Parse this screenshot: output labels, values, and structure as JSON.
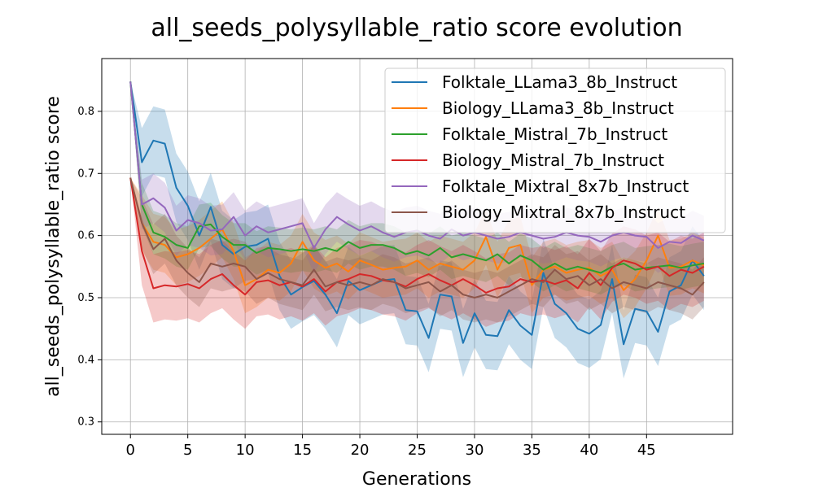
{
  "chart_data": {
    "type": "line",
    "title": "all_seeds_polysyllable_ratio score evolution",
    "xlabel": "Generations",
    "ylabel": "all_seeds_polysyllable_ratio score",
    "xlim": [
      -2.5,
      52.5
    ],
    "ylim": [
      0.28,
      0.885
    ],
    "xticks": [
      0,
      5,
      10,
      15,
      20,
      25,
      30,
      35,
      40,
      45
    ],
    "yticks": [
      0.3,
      0.4,
      0.5,
      0.6,
      0.7,
      0.8
    ],
    "grid": true,
    "legend_position": "top-right",
    "x": [
      0,
      1,
      2,
      3,
      4,
      5,
      6,
      7,
      8,
      9,
      10,
      11,
      12,
      13,
      14,
      15,
      16,
      17,
      18,
      19,
      20,
      21,
      22,
      23,
      24,
      25,
      26,
      27,
      28,
      29,
      30,
      31,
      32,
      33,
      34,
      35,
      36,
      37,
      38,
      39,
      40,
      41,
      42,
      43,
      44,
      45,
      46,
      47,
      48,
      49,
      50
    ],
    "series": [
      {
        "name": "Folktale_LLama3_8b_Instruct",
        "color": "#1f77b4",
        "values": [
          0.848,
          0.718,
          0.753,
          0.748,
          0.677,
          0.648,
          0.6,
          0.646,
          0.585,
          0.57,
          0.582,
          0.585,
          0.595,
          0.535,
          0.505,
          0.517,
          0.527,
          0.505,
          0.475,
          0.527,
          0.512,
          0.52,
          0.528,
          0.53,
          0.48,
          0.478,
          0.435,
          0.505,
          0.502,
          0.427,
          0.475,
          0.44,
          0.438,
          0.48,
          0.455,
          0.44,
          0.54,
          0.49,
          0.475,
          0.45,
          0.442,
          0.456,
          0.53,
          0.425,
          0.482,
          0.478,
          0.445,
          0.51,
          0.52,
          0.56,
          0.535
        ],
        "band": 0.055
      },
      {
        "name": "Biology_LLama3_8b_Instruct",
        "color": "#ff7f0e",
        "values": [
          0.693,
          0.62,
          0.59,
          0.585,
          0.565,
          0.57,
          0.58,
          0.595,
          0.61,
          0.575,
          0.52,
          0.53,
          0.545,
          0.54,
          0.555,
          0.59,
          0.56,
          0.548,
          0.555,
          0.542,
          0.56,
          0.553,
          0.545,
          0.548,
          0.55,
          0.56,
          0.545,
          0.555,
          0.55,
          0.545,
          0.56,
          0.598,
          0.545,
          0.58,
          0.585,
          0.52,
          0.545,
          0.55,
          0.54,
          0.545,
          0.548,
          0.535,
          0.545,
          0.512,
          0.53,
          0.56,
          0.6,
          0.548,
          0.55,
          0.56,
          0.552
        ],
        "band": 0.045
      },
      {
        "name": "Folktale_Mistral_7b_Instruct",
        "color": "#2ca02c",
        "values": [
          0.848,
          0.65,
          0.605,
          0.598,
          0.585,
          0.58,
          0.615,
          0.618,
          0.598,
          0.585,
          0.585,
          0.572,
          0.58,
          0.578,
          0.575,
          0.578,
          0.575,
          0.58,
          0.575,
          0.59,
          0.58,
          0.585,
          0.585,
          0.58,
          0.57,
          0.575,
          0.568,
          0.58,
          0.565,
          0.57,
          0.565,
          0.56,
          0.57,
          0.555,
          0.568,
          0.56,
          0.545,
          0.555,
          0.545,
          0.55,
          0.545,
          0.54,
          0.55,
          0.555,
          0.545,
          0.548,
          0.55,
          0.552,
          0.548,
          0.552,
          0.555
        ],
        "band": 0.035
      },
      {
        "name": "Biology_Mistral_7b_Instruct",
        "color": "#d62728",
        "values": [
          0.693,
          0.575,
          0.515,
          0.52,
          0.518,
          0.522,
          0.515,
          0.53,
          0.538,
          0.52,
          0.505,
          0.525,
          0.528,
          0.52,
          0.525,
          0.518,
          0.53,
          0.51,
          0.525,
          0.53,
          0.538,
          0.535,
          0.528,
          0.525,
          0.518,
          0.53,
          0.538,
          0.528,
          0.52,
          0.53,
          0.52,
          0.508,
          0.515,
          0.518,
          0.53,
          0.525,
          0.528,
          0.522,
          0.528,
          0.515,
          0.54,
          0.52,
          0.548,
          0.56,
          0.555,
          0.545,
          0.55,
          0.535,
          0.545,
          0.54,
          0.55
        ],
        "band": 0.055
      },
      {
        "name": "Folktale_Mixtral_8x7b_Instruct",
        "color": "#9467bd",
        "values": [
          0.848,
          0.65,
          0.66,
          0.645,
          0.608,
          0.625,
          0.62,
          0.608,
          0.61,
          0.63,
          0.6,
          0.615,
          0.605,
          0.61,
          0.615,
          0.62,
          0.58,
          0.61,
          0.63,
          0.618,
          0.608,
          0.615,
          0.605,
          0.598,
          0.605,
          0.608,
          0.6,
          0.595,
          0.61,
          0.6,
          0.605,
          0.6,
          0.595,
          0.598,
          0.605,
          0.6,
          0.595,
          0.598,
          0.605,
          0.6,
          0.598,
          0.59,
          0.6,
          0.605,
          0.6,
          0.598,
          0.58,
          0.59,
          0.588,
          0.6,
          0.592
        ],
        "band": 0.04
      },
      {
        "name": "Biology_Mixtral_8x7b_Instruct",
        "color": "#8c564b",
        "values": [
          0.693,
          0.62,
          0.578,
          0.595,
          0.56,
          0.54,
          0.525,
          0.555,
          0.55,
          0.555,
          0.55,
          0.53,
          0.54,
          0.53,
          0.525,
          0.52,
          0.545,
          0.518,
          0.525,
          0.52,
          0.525,
          0.52,
          0.53,
          0.525,
          0.515,
          0.52,
          0.525,
          0.51,
          0.52,
          0.505,
          0.5,
          0.505,
          0.5,
          0.51,
          0.52,
          0.53,
          0.525,
          0.545,
          0.53,
          0.535,
          0.52,
          0.53,
          0.515,
          0.525,
          0.52,
          0.515,
          0.525,
          0.52,
          0.515,
          0.505,
          0.525
        ],
        "band": 0.04
      }
    ]
  }
}
